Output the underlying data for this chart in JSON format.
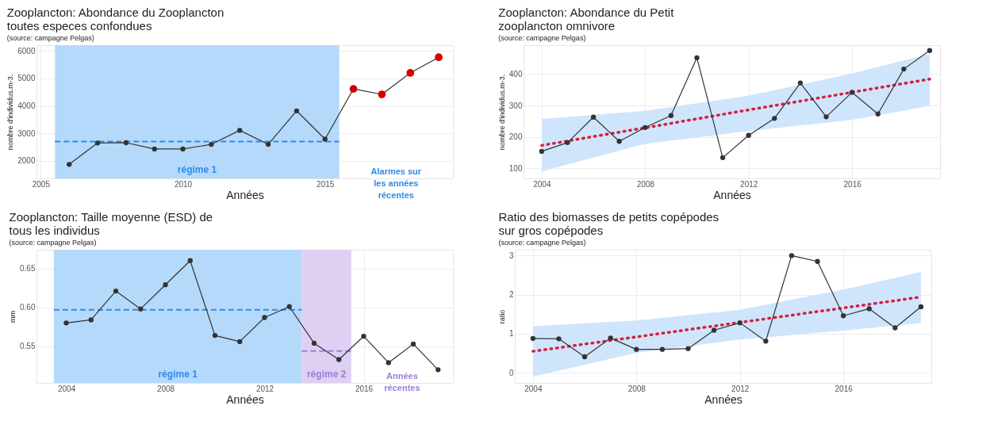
{
  "chart_data": [
    {
      "type": "line",
      "title": "Zooplancton: Abondance du Zooplancton\ntoutes especes confondues",
      "subtitle": "(source: campagne Pelgas)",
      "xlabel": "Années",
      "ylabel": "nombre d'individus.m-3.",
      "xlim": [
        2004.85,
        2019.5
      ],
      "ylim": [
        1360,
        6210
      ],
      "xticks": [
        2005,
        2010,
        2015
      ],
      "yticks": [
        2000,
        3000,
        4000,
        5000,
        6000
      ],
      "grid": true,
      "marker": "circle",
      "series": [
        {
          "color": "#333333",
          "x": [
            2006,
            2007,
            2008,
            2009,
            2010,
            2011,
            2012,
            2013,
            2014,
            2015,
            2016,
            2017,
            2018,
            2019
          ],
          "values": [
            1870,
            2650,
            2660,
            2430,
            2430,
            2600,
            3110,
            2600,
            3820,
            2790,
            4620,
            4420,
            5200,
            5770
          ]
        },
        {
          "type": "scatter",
          "color": "#d40000",
          "x": [
            2016,
            2017,
            2018,
            2019
          ],
          "values": [
            4620,
            4420,
            5200,
            5770
          ]
        }
      ],
      "bands": [
        {
          "axis": "x",
          "from": 2005.5,
          "to": 2015.5,
          "label": "régime 1",
          "color": "#b5d9fb"
        }
      ],
      "ref_lines": [
        {
          "axis": "y",
          "value": 2700,
          "color": "#2e8be8",
          "line_style": "dashed"
        }
      ],
      "annotations": [
        "Alarmes sur\nles années\nrécentes"
      ]
    },
    {
      "type": "line",
      "title": "Zooplancton: Abondance du Petit\nzooplancton omnivore",
      "subtitle": "(source: campagne Pelgas)",
      "xlabel": "Années",
      "ylabel": "nombre d'individus.m-3.",
      "xlim": [
        2003.3,
        2019.4
      ],
      "ylim": [
        68,
        492
      ],
      "xticks": [
        2004,
        2008,
        2012,
        2016
      ],
      "yticks": [
        100,
        200,
        300,
        400
      ],
      "grid": true,
      "marker": "circle",
      "series": [
        {
          "color": "#d4213d",
          "marker": "none",
          "line_style": "dotted",
          "x": [
            2004,
            2008,
            2012,
            2016,
            2019
          ],
          "values": [
            173,
            229,
            286,
            342,
            384
          ],
          "lower": [
            90,
            178,
            219,
            254,
            299
          ],
          "upper": [
            257,
            283,
            331,
            402,
            464
          ]
        },
        {
          "color": "#333333",
          "x": [
            2004,
            2005,
            2006,
            2007,
            2008,
            2009,
            2010,
            2011,
            2012,
            2013,
            2014,
            2015,
            2016,
            2017,
            2018,
            2019
          ],
          "values": [
            154,
            182,
            263,
            186,
            230,
            268,
            452,
            134,
            205,
            259,
            372,
            264,
            342,
            273,
            416,
            475
          ]
        }
      ]
    },
    {
      "type": "line",
      "title": "Zooplancton: Taille moyenne (ESD) de\ntous les individus",
      "subtitle": "(source: campagne Pelgas)",
      "xlabel": "Années",
      "ylabel": "mm",
      "xlim": [
        2002.8,
        2019.6
      ],
      "ylim": [
        0.503,
        0.674
      ],
      "xticks": [
        2004,
        2008,
        2012,
        2016
      ],
      "yticks": [
        0.55,
        {
          "value": 0.6,
          "label": "0.60"
        },
        0.65
      ],
      "grid": true,
      "marker": "circle",
      "series": [
        {
          "color": "#333333",
          "x": [
            2004,
            2005,
            2006,
            2007,
            2008,
            2009,
            2010,
            2011,
            2012,
            2013,
            2014,
            2015,
            2016,
            2017,
            2018,
            2019
          ],
          "values": [
            0.58,
            0.584,
            0.621,
            0.598,
            0.629,
            0.66,
            0.564,
            0.556,
            0.587,
            0.601,
            0.554,
            0.533,
            0.563,
            0.529,
            0.553,
            0.52
          ]
        }
      ],
      "bands": [
        {
          "axis": "x",
          "from": 2003.5,
          "to": 2013.5,
          "label": "régime 1",
          "color": "#b5d9fb"
        },
        {
          "axis": "x",
          "from": 2013.5,
          "to": 2015.5,
          "label": "régime 2",
          "color": "#ddd0f3"
        }
      ],
      "ref_lines": [
        {
          "axis": "y",
          "value": 0.597,
          "color": "#2e8be8",
          "line_style": "dashed"
        },
        {
          "axis": "y",
          "value": 0.544,
          "color": "#9b7fd6",
          "line_style": "dashed"
        }
      ],
      "annotations": [
        "Années\nrécentes"
      ]
    },
    {
      "type": "line",
      "title": "Ratio des biomasses de petits copépodes\nsur gros copépodes",
      "subtitle": "(source: campagne Pelgas)",
      "xlabel": "Années",
      "ylabel": "ratio",
      "xlim": [
        2003.3,
        2019.4
      ],
      "ylim": [
        -0.26,
        3.15
      ],
      "xticks": [
        2004,
        2008,
        2012,
        2016
      ],
      "yticks": [
        0,
        1,
        2,
        3
      ],
      "grid": true,
      "marker": "circle",
      "series": [
        {
          "color": "#d4213d",
          "marker": "none",
          "line_style": "dotted",
          "x": [
            2004,
            2008,
            2012,
            2016,
            2019
          ],
          "values": [
            0.55,
            0.92,
            1.29,
            1.66,
            1.94
          ],
          "lower": [
            -0.1,
            0.51,
            0.85,
            1.08,
            1.28
          ],
          "upper": [
            1.19,
            1.34,
            1.61,
            2.13,
            2.58
          ]
        },
        {
          "color": "#333333",
          "x": [
            2004,
            2005,
            2006,
            2007,
            2008,
            2009,
            2010,
            2011,
            2012,
            2013,
            2014,
            2015,
            2016,
            2017,
            2018,
            2019
          ],
          "values": [
            0.88,
            0.87,
            0.41,
            0.89,
            0.6,
            0.6,
            0.62,
            1.09,
            1.28,
            0.81,
            3.0,
            2.85,
            1.46,
            1.64,
            1.15,
            1.69
          ]
        }
      ]
    }
  ]
}
